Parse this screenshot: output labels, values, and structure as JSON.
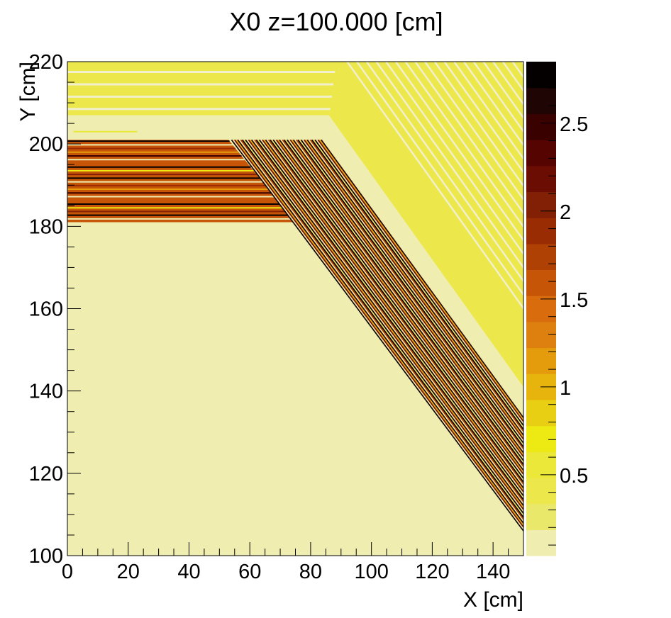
{
  "chart_data": {
    "type": "heatmap",
    "title": "X0 z=100.000 [cm]",
    "xlabel": "X [cm]",
    "ylabel": "Y [cm]",
    "xlim": [
      0,
      150
    ],
    "ylim": [
      100,
      220
    ],
    "x_ticks": [
      "0",
      "20",
      "40",
      "60",
      "80",
      "100",
      "120",
      "140"
    ],
    "y_ticks": [
      "100",
      "120",
      "140",
      "160",
      "180",
      "200",
      "220"
    ],
    "colorbar": {
      "range": [
        0.04,
        2.85
      ],
      "ticks": [
        "0.5",
        "1",
        "1.5",
        "2",
        "2.5"
      ],
      "levels": 19,
      "colors": [
        "#efedb0",
        "#eae86a",
        "#ece84b",
        "#ebe83a",
        "#ede913",
        "#e9cf13",
        "#e6b40c",
        "#e49c0c",
        "#dd8010",
        "#d96c0c",
        "#c75508",
        "#af4105",
        "#992c03",
        "#812005",
        "#6c0d03",
        "#550402",
        "#3a0101",
        "#1f0504",
        "#040000"
      ]
    },
    "regions": [
      {
        "name": "background",
        "value": 0.08
      },
      {
        "name": "upper-striped-band",
        "value": 0.45
      },
      {
        "name": "upper-diagonal-band",
        "value": 0.45
      },
      {
        "name": "horizontal-dense-layers",
        "value": 1.6,
        "y_range": [
          181,
          201
        ]
      },
      {
        "name": "diagonal-dense-layers",
        "value": 1.6
      }
    ]
  }
}
